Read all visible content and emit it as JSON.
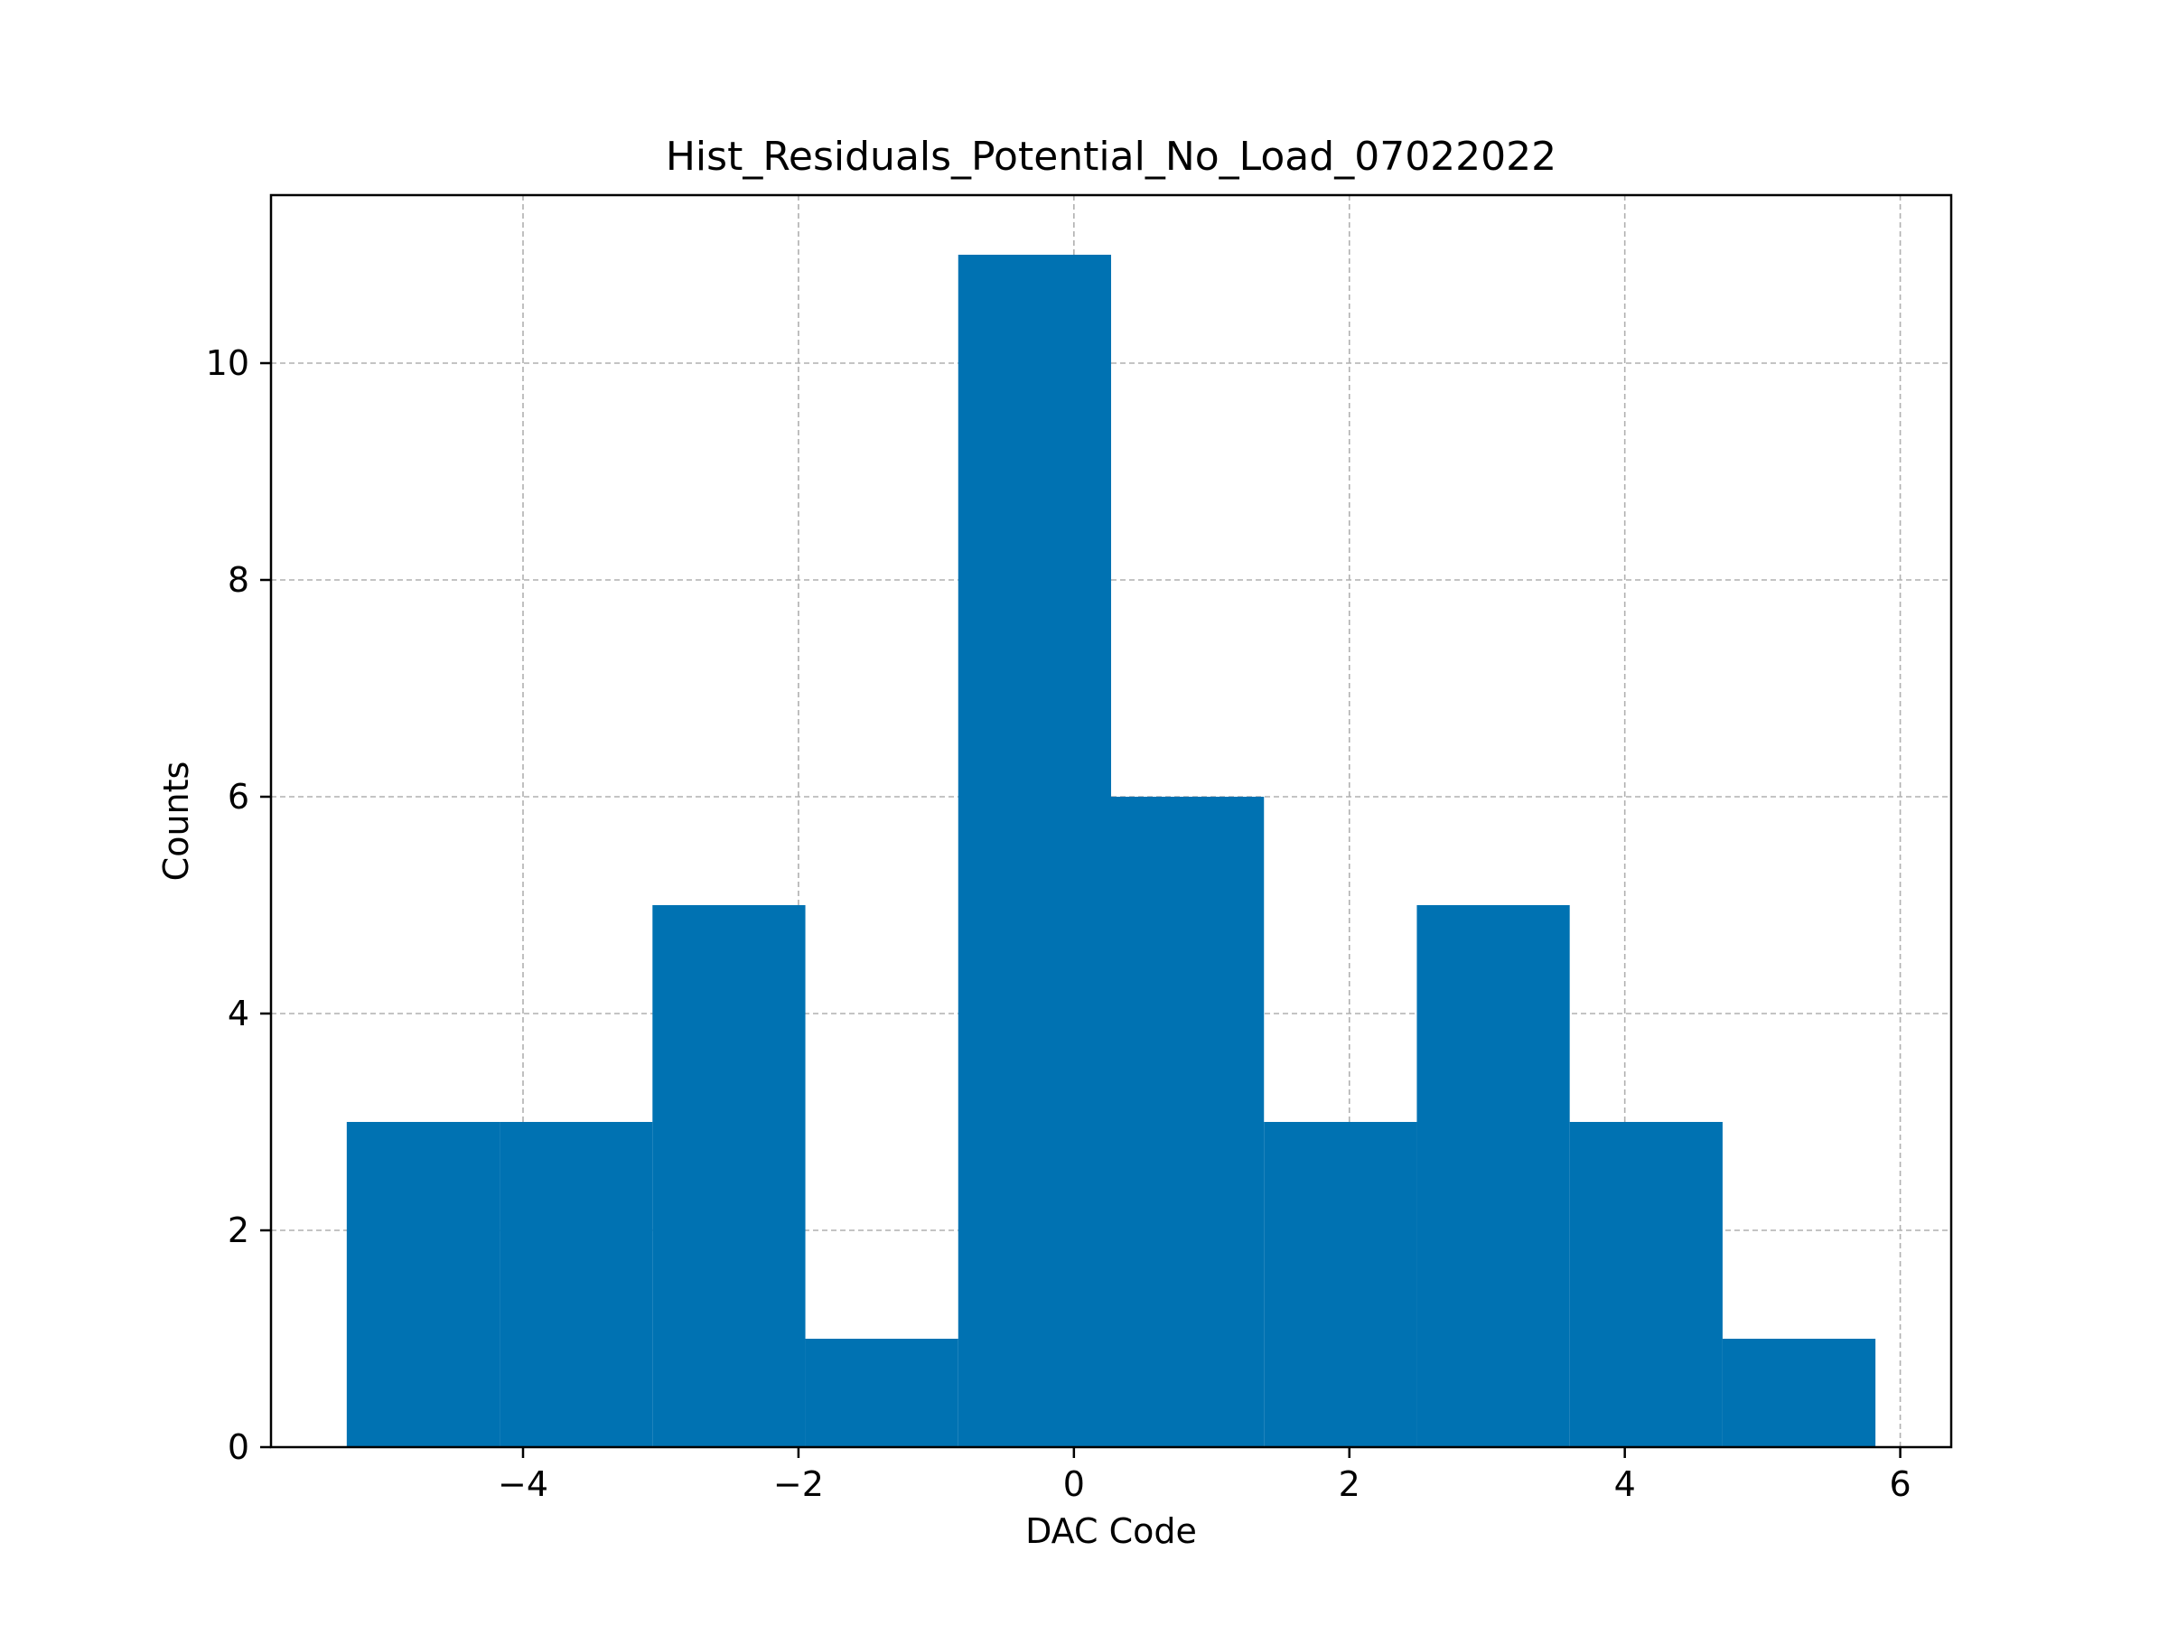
{
  "chart_data": {
    "type": "bar",
    "title": "Hist_Residuals_Potential_No_Load_07022022",
    "xlabel": "DAC Code",
    "ylabel": "Counts",
    "bin_edges": [
      -5.28,
      -4.17,
      -3.06,
      -1.95,
      -0.84,
      0.27,
      1.38,
      2.49,
      3.6,
      4.71,
      5.82
    ],
    "values": [
      3,
      3,
      5,
      1,
      11,
      6,
      3,
      5,
      3,
      1
    ],
    "xlim": [
      -5.83,
      6.37
    ],
    "ylim": [
      0,
      11.55
    ],
    "xticks": [
      -4,
      -2,
      0,
      2,
      4,
      6
    ],
    "xtick_labels": [
      "−4",
      "−2",
      "0",
      "2",
      "4",
      "6"
    ],
    "yticks": [
      0,
      2,
      4,
      6,
      8,
      10
    ],
    "ytick_labels": [
      "0",
      "2",
      "4",
      "6",
      "8",
      "10"
    ],
    "grid": true,
    "bar_color": "#0072b2",
    "grid_color": "#b0b0b0"
  }
}
